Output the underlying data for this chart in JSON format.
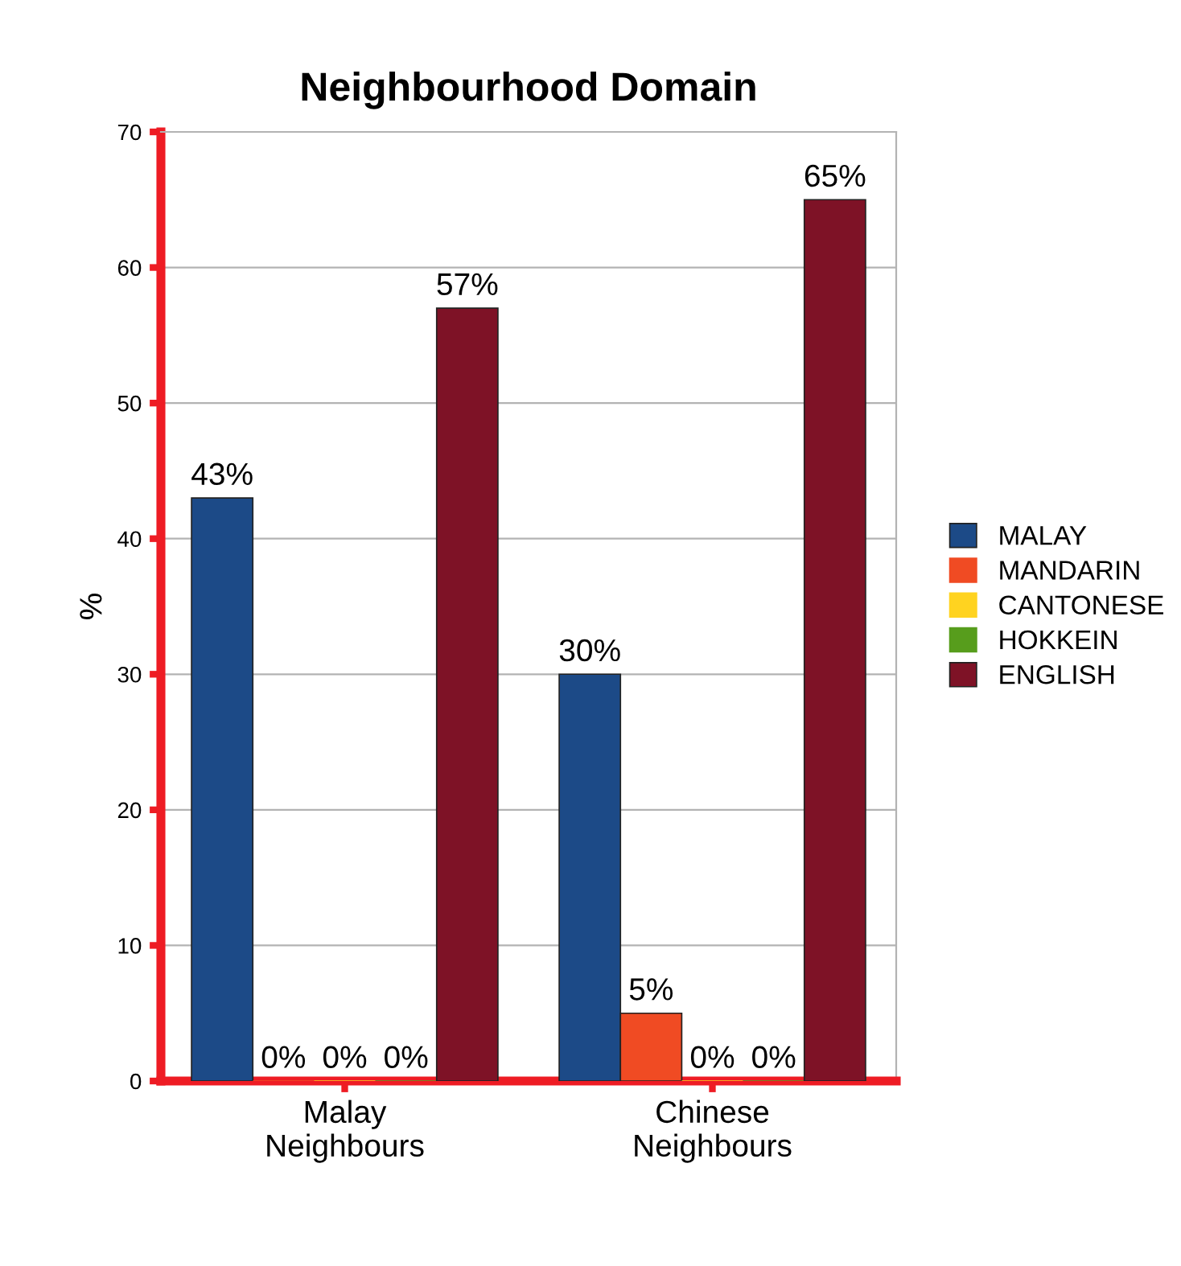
{
  "chart_data": {
    "type": "bar",
    "title": "Neighbourhood Domain",
    "ylabel": "%",
    "categories": [
      "Malay\nNeighbours",
      "Chinese\nNeighbours"
    ],
    "series": [
      {
        "name": "MALAY",
        "color": "#1c4a87",
        "values": [
          43,
          30
        ],
        "value_labels": [
          "43%",
          "30%"
        ]
      },
      {
        "name": "MANDARIN",
        "color": "#f04b23",
        "values": [
          0,
          5
        ],
        "value_labels": [
          "0%",
          "5%"
        ]
      },
      {
        "name": "CANTONESE",
        "color": "#ffd320",
        "values": [
          0,
          0
        ],
        "value_labels": [
          "0%",
          "0%"
        ]
      },
      {
        "name": "HOKKEIN",
        "color": "#579d1c",
        "values": [
          0,
          0
        ],
        "value_labels": [
          "0%",
          "0%"
        ]
      },
      {
        "name": "ENGLISH",
        "color": "#7e1226",
        "values": [
          57,
          65
        ],
        "value_labels": [
          "57%",
          "65%"
        ]
      }
    ],
    "ylim": [
      0,
      70
    ],
    "yticks": [
      0,
      10,
      20,
      30,
      40,
      50,
      60,
      70
    ],
    "grid": "y",
    "legend": "right"
  }
}
